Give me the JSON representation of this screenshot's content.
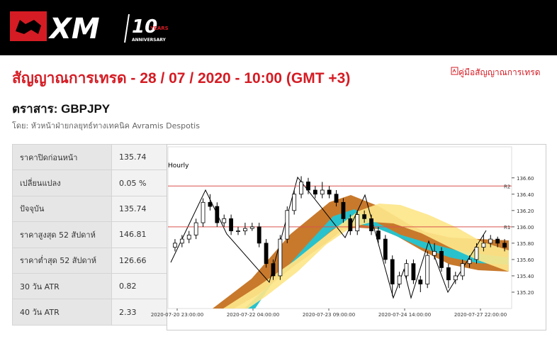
{
  "header": {
    "logo": "XM",
    "anniversary_number": "10",
    "anniversary_years": "YEARS",
    "anniversary_text": "ANNIVERSARY"
  },
  "title": "สัญญาณการเทรด - 28 / 07 / 2020 - 10:00 (GMT +3)",
  "guide_link": "คู่มือสัญญาณการเทรด",
  "instrument": "ตราสาร: GBPJPY",
  "author": "โดย: หัวหน้าฝ่ายกลยุทธ์ทางเทคนิค Avramis Despotis",
  "table": {
    "rows": [
      [
        "ราคาปิดก่อนหน้า",
        "135.74"
      ],
      [
        "เปลี่ยนแปลง",
        "0.05 %"
      ],
      [
        "ปัจจุบัน",
        "135.74"
      ],
      [
        "ราคาสูงสุด 52 สัปดาห์",
        "146.81"
      ],
      [
        "ราคาต่ำสุด 52 สัปดาห์",
        "126.66"
      ],
      [
        "30 วัน ATR",
        "0.82"
      ],
      [
        "40 วัน ATR",
        "2.33"
      ]
    ]
  },
  "chart_data": {
    "type": "candlestick",
    "timeframe": "Hourly",
    "x_labels": [
      "2020-07-20 23:00:00",
      "2020-07-22 04:00:00",
      "2020-07-23 09:00:00",
      "2020-07-24 14:00:00",
      "2020-07-27 22:00:00"
    ],
    "ylim": [
      135.0,
      136.98
    ],
    "yticks": [
      {
        "value": 135.2,
        "label": "135.20"
      },
      {
        "value": 135.4,
        "label": "135.40"
      },
      {
        "value": 135.6,
        "label": "135.60"
      },
      {
        "value": 135.8,
        "label": "135.80"
      },
      {
        "value": 136.0,
        "label": "136.00"
      },
      {
        "value": 136.2,
        "label": "136.20"
      },
      {
        "value": 136.4,
        "label": "136.40"
      },
      {
        "value": 136.6,
        "label": "136.60"
      }
    ],
    "levels": [
      {
        "name": "R2",
        "value": 136.5,
        "color": "#d9534f"
      },
      {
        "name": "R1",
        "value": 136.0,
        "color": "#d9534f"
      }
    ],
    "candles": [
      [
        135.75,
        135.85,
        135.7,
        135.8
      ],
      [
        135.8,
        135.9,
        135.75,
        135.85
      ],
      [
        135.85,
        135.95,
        135.8,
        135.9
      ],
      [
        135.9,
        136.1,
        135.85,
        136.05
      ],
      [
        136.05,
        136.35,
        136.0,
        136.3
      ],
      [
        136.3,
        136.4,
        136.2,
        136.25
      ],
      [
        136.25,
        136.3,
        136.0,
        136.05
      ],
      [
        136.05,
        136.15,
        136.0,
        136.1
      ],
      [
        136.1,
        136.15,
        135.9,
        135.95
      ],
      [
        135.95,
        136.0,
        135.9,
        135.95
      ],
      [
        135.95,
        136.05,
        135.9,
        135.98
      ],
      [
        135.98,
        136.05,
        135.95,
        136.0
      ],
      [
        136.0,
        136.05,
        135.75,
        135.8
      ],
      [
        135.8,
        135.85,
        135.5,
        135.55
      ],
      [
        135.55,
        135.6,
        135.35,
        135.4
      ],
      [
        135.4,
        135.9,
        135.35,
        135.85
      ],
      [
        135.85,
        136.25,
        135.8,
        136.2
      ],
      [
        136.2,
        136.45,
        136.15,
        136.4
      ],
      [
        136.4,
        136.62,
        136.35,
        136.55
      ],
      [
        136.55,
        136.6,
        136.4,
        136.45
      ],
      [
        136.45,
        136.5,
        136.35,
        136.4
      ],
      [
        136.4,
        136.55,
        136.35,
        136.45
      ],
      [
        136.45,
        136.5,
        136.35,
        136.4
      ],
      [
        136.4,
        136.45,
        136.25,
        136.3
      ],
      [
        136.3,
        136.35,
        136.05,
        136.1
      ],
      [
        136.1,
        136.15,
        135.9,
        135.95
      ],
      [
        135.95,
        136.2,
        135.9,
        136.15
      ],
      [
        136.15,
        136.2,
        136.05,
        136.1
      ],
      [
        136.1,
        136.15,
        135.9,
        135.95
      ],
      [
        135.95,
        136.0,
        135.8,
        135.85
      ],
      [
        135.85,
        135.9,
        135.55,
        135.6
      ],
      [
        135.6,
        135.65,
        135.15,
        135.3
      ],
      [
        135.3,
        135.45,
        135.25,
        135.4
      ],
      [
        135.4,
        135.6,
        135.35,
        135.55
      ],
      [
        135.55,
        135.6,
        135.3,
        135.35
      ],
      [
        135.35,
        135.4,
        135.2,
        135.3
      ],
      [
        135.3,
        135.7,
        135.25,
        135.65
      ],
      [
        135.65,
        135.8,
        135.6,
        135.7
      ],
      [
        135.7,
        135.75,
        135.45,
        135.5
      ],
      [
        135.5,
        135.55,
        135.25,
        135.35
      ],
      [
        135.35,
        135.45,
        135.3,
        135.4
      ],
      [
        135.4,
        135.6,
        135.35,
        135.55
      ],
      [
        135.55,
        135.65,
        135.5,
        135.6
      ],
      [
        135.6,
        135.8,
        135.55,
        135.75
      ],
      [
        135.75,
        135.9,
        135.7,
        135.8
      ],
      [
        135.8,
        135.9,
        135.75,
        135.85
      ],
      [
        135.85,
        135.88,
        135.75,
        135.8
      ],
      [
        135.8,
        135.85,
        135.7,
        135.75
      ]
    ]
  }
}
